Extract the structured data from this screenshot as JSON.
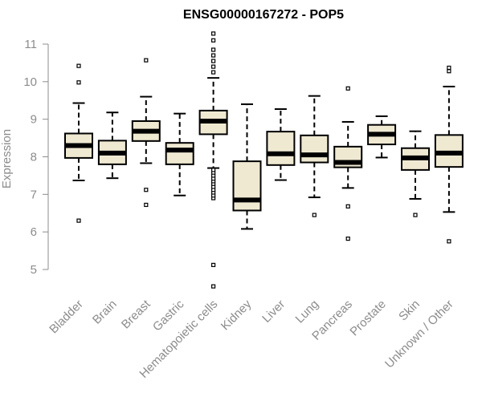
{
  "chart_data": {
    "type": "boxplot",
    "title": "ENSG00000167272 - POP5",
    "xlabel": "",
    "ylabel": "Expression",
    "ylim": [
      4.5,
      11.3
    ],
    "yticks": [
      5,
      6,
      7,
      8,
      9,
      10,
      11
    ],
    "colors": {
      "box_fill": "#efe9d2",
      "stroke": "#000000",
      "axis": "#8c8c8c"
    },
    "categories": [
      "Bladder",
      "Brain",
      "Breast",
      "Gastric",
      "Hematopoietic cells",
      "Kidney",
      "Liver",
      "Lung",
      "Pancreas",
      "Prostate",
      "Skin",
      "Unknown / Other"
    ],
    "boxes": [
      {
        "q1": 7.97,
        "median": 8.3,
        "q3": 8.62,
        "whisker_low": 7.37,
        "whisker_high": 9.43,
        "outliers": [
          6.3,
          9.98,
          10.42
        ]
      },
      {
        "q1": 7.8,
        "median": 8.1,
        "q3": 8.43,
        "whisker_low": 7.43,
        "whisker_high": 9.18,
        "outliers": []
      },
      {
        "q1": 8.42,
        "median": 8.68,
        "q3": 8.95,
        "whisker_low": 7.83,
        "whisker_high": 9.6,
        "outliers": [
          6.72,
          7.12,
          10.57
        ]
      },
      {
        "q1": 7.8,
        "median": 8.18,
        "q3": 8.37,
        "whisker_low": 6.97,
        "whisker_high": 9.15,
        "outliers": []
      },
      {
        "q1": 8.6,
        "median": 8.95,
        "q3": 9.23,
        "whisker_low": 7.7,
        "whisker_high": 10.1,
        "outliers": [
          4.55,
          5.12,
          6.9,
          6.97,
          7.05,
          7.12,
          7.2,
          7.28,
          7.35,
          7.42,
          7.5,
          7.58,
          7.65,
          10.25,
          10.4,
          10.55,
          10.7,
          10.85,
          11.1,
          11.28
        ]
      },
      {
        "q1": 6.57,
        "median": 6.85,
        "q3": 7.88,
        "whisker_low": 6.08,
        "whisker_high": 9.4,
        "outliers": []
      },
      {
        "q1": 7.78,
        "median": 8.08,
        "q3": 8.67,
        "whisker_low": 7.38,
        "whisker_high": 9.27,
        "outliers": []
      },
      {
        "q1": 7.85,
        "median": 8.05,
        "q3": 8.57,
        "whisker_low": 6.92,
        "whisker_high": 9.62,
        "outliers": [
          6.45
        ]
      },
      {
        "q1": 7.72,
        "median": 7.85,
        "q3": 8.27,
        "whisker_low": 7.17,
        "whisker_high": 8.93,
        "outliers": [
          5.82,
          6.68,
          9.82
        ]
      },
      {
        "q1": 8.33,
        "median": 8.6,
        "q3": 8.85,
        "whisker_low": 7.98,
        "whisker_high": 9.08,
        "outliers": []
      },
      {
        "q1": 7.65,
        "median": 7.97,
        "q3": 8.23,
        "whisker_low": 6.88,
        "whisker_high": 8.68,
        "outliers": [
          6.45
        ]
      },
      {
        "q1": 7.73,
        "median": 8.1,
        "q3": 8.58,
        "whisker_low": 6.53,
        "whisker_high": 9.87,
        "outliers": [
          5.75,
          10.28,
          10.37
        ]
      }
    ]
  }
}
